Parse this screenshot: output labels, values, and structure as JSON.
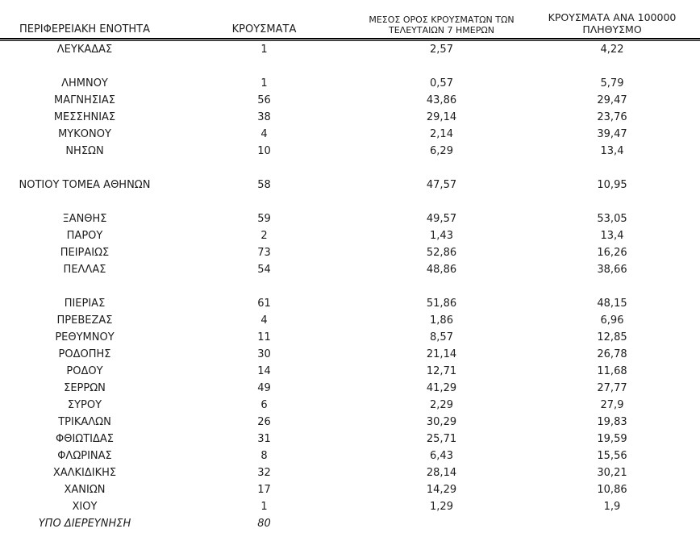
{
  "page": {
    "background": "#ffffff",
    "text_color": "#1c1c1c",
    "rule_color": "#000000"
  },
  "table": {
    "headers": {
      "region": "ΠΕΡΙΦΕΡΕΙΑΚΗ ΕΝΟΤΗΤΑ",
      "cases": "ΚΡΟΥΣΜΑΤΑ",
      "avg7": "ΜΕΣΟΣ ΟΡΟΣ ΚΡΟΥΣΜΑΤΩΝ ΤΩΝ\nΤΕΛΕΥΤΑΙΩΝ 7 ΗΜΕΡΩΝ",
      "per100k": "ΚΡΟΥΣΜΑΤΑ ΑΝΑ 100000\nΠΛΗΘΥΣΜΟ"
    },
    "rows": [
      {
        "region": "ΛΕΥΚΑΔΑΣ",
        "cases": "1",
        "avg7": "2,57",
        "per100k": "4,22"
      },
      {
        "region": "",
        "cases": "",
        "avg7": "",
        "per100k": "",
        "spacer": true
      },
      {
        "region": "ΛΗΜΝΟΥ",
        "cases": "1",
        "avg7": "0,57",
        "per100k": "5,79"
      },
      {
        "region": "ΜΑΓΝΗΣΙΑΣ",
        "cases": "56",
        "avg7": "43,86",
        "per100k": "29,47"
      },
      {
        "region": "ΜΕΣΣΗΝΙΑΣ",
        "cases": "38",
        "avg7": "29,14",
        "per100k": "23,76"
      },
      {
        "region": "ΜΥΚΟΝΟΥ",
        "cases": "4",
        "avg7": "2,14",
        "per100k": "39,47"
      },
      {
        "region": "ΝΗΣΩΝ",
        "cases": "10",
        "avg7": "6,29",
        "per100k": "13,4"
      },
      {
        "region": "",
        "cases": "",
        "avg7": "",
        "per100k": "",
        "spacer": true
      },
      {
        "region": "ΝΟΤΙΟΥ ΤΟΜΕΑ ΑΘΗΝΩΝ",
        "cases": "58",
        "avg7": "47,57",
        "per100k": "10,95"
      },
      {
        "region": "",
        "cases": "",
        "avg7": "",
        "per100k": "",
        "spacer": true
      },
      {
        "region": "ΞΑΝΘΗΣ",
        "cases": "59",
        "avg7": "49,57",
        "per100k": "53,05"
      },
      {
        "region": "ΠΑΡΟΥ",
        "cases": "2",
        "avg7": "1,43",
        "per100k": "13,4"
      },
      {
        "region": "ΠΕΙΡΑΙΩΣ",
        "cases": "73",
        "avg7": "52,86",
        "per100k": "16,26"
      },
      {
        "region": "ΠΕΛΛΑΣ",
        "cases": "54",
        "avg7": "48,86",
        "per100k": "38,66"
      },
      {
        "region": "",
        "cases": "",
        "avg7": "",
        "per100k": "",
        "spacer": true
      },
      {
        "region": "ΠΙΕΡΙΑΣ",
        "cases": "61",
        "avg7": "51,86",
        "per100k": "48,15"
      },
      {
        "region": "ΠΡΕΒΕΖΑΣ",
        "cases": "4",
        "avg7": "1,86",
        "per100k": "6,96"
      },
      {
        "region": "ΡΕΘΥΜΝΟΥ",
        "cases": "11",
        "avg7": "8,57",
        "per100k": "12,85"
      },
      {
        "region": "ΡΟΔΟΠΗΣ",
        "cases": "30",
        "avg7": "21,14",
        "per100k": "26,78"
      },
      {
        "region": "ΡΟΔΟΥ",
        "cases": "14",
        "avg7": "12,71",
        "per100k": "11,68"
      },
      {
        "region": "ΣΕΡΡΩΝ",
        "cases": "49",
        "avg7": "41,29",
        "per100k": "27,77"
      },
      {
        "region": "ΣΥΡΟΥ",
        "cases": "6",
        "avg7": "2,29",
        "per100k": "27,9"
      },
      {
        "region": "ΤΡΙΚΑΛΩΝ",
        "cases": "26",
        "avg7": "30,29",
        "per100k": "19,83"
      },
      {
        "region": "ΦΘΙΩΤΙΔΑΣ",
        "cases": "31",
        "avg7": "25,71",
        "per100k": "19,59"
      },
      {
        "region": "ΦΛΩΡΙΝΑΣ",
        "cases": "8",
        "avg7": "6,43",
        "per100k": "15,56"
      },
      {
        "region": "ΧΑΛΚΙΔΙΚΗΣ",
        "cases": "32",
        "avg7": "28,14",
        "per100k": "30,21"
      },
      {
        "region": "ΧΑΝΙΩΝ",
        "cases": "17",
        "avg7": "14,29",
        "per100k": "10,86"
      },
      {
        "region": "ΧΙΟΥ",
        "cases": "1",
        "avg7": "1,29",
        "per100k": "1,9"
      },
      {
        "region": "ΥΠΟ ΔΙΕΡΕΥΝΗΣΗ",
        "cases": "80",
        "avg7": "",
        "per100k": "",
        "style": "italic"
      }
    ]
  }
}
